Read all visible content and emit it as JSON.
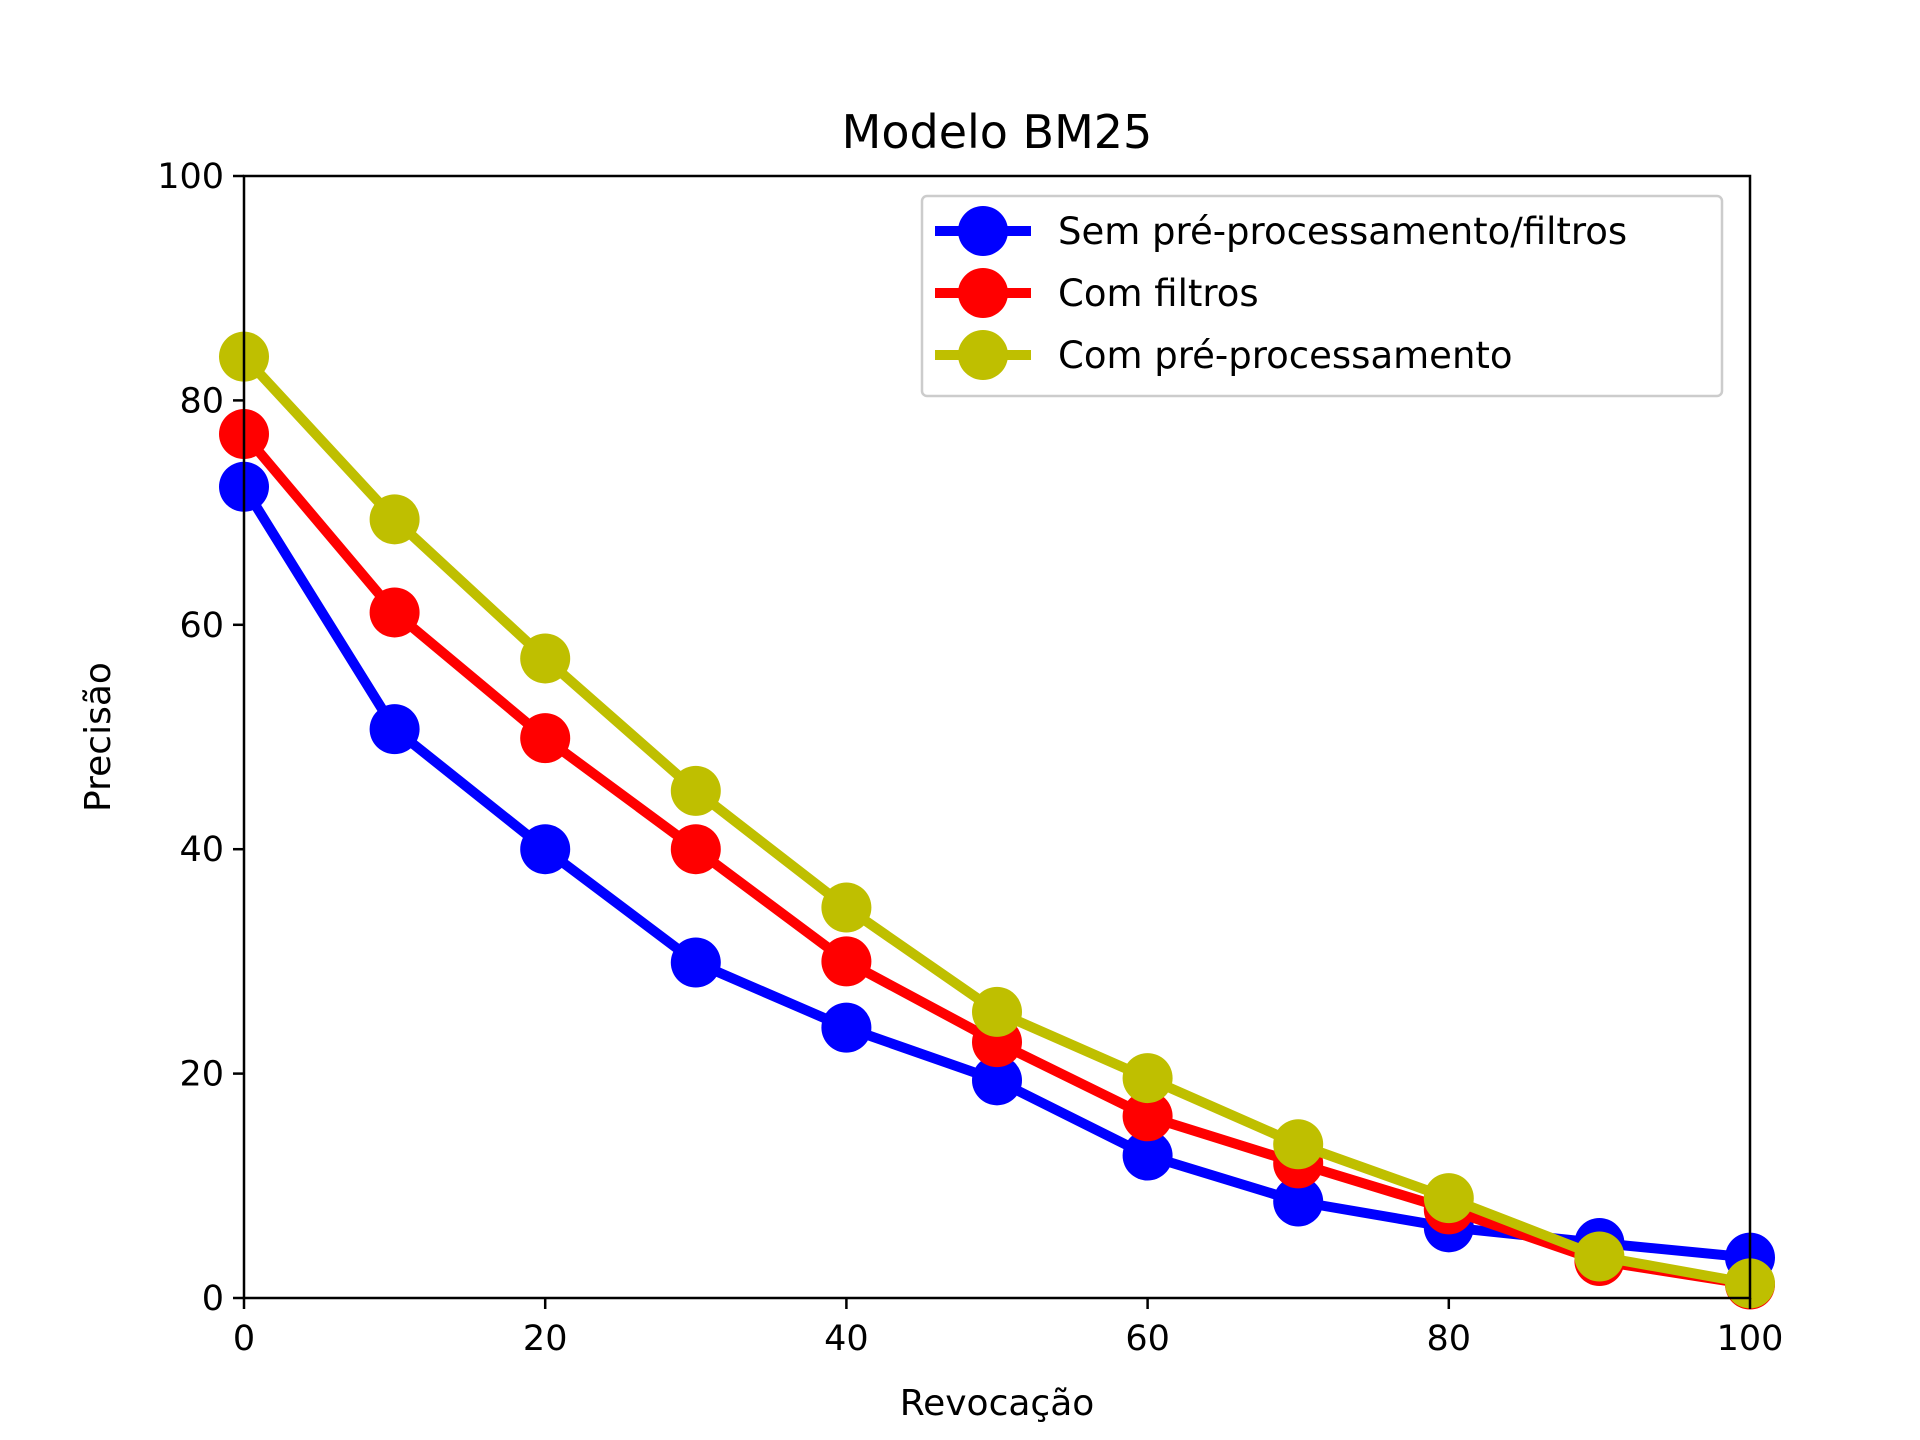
{
  "chart_data": {
    "type": "line",
    "title": "Modelo BM25",
    "xlabel": "Revocação",
    "ylabel": "Precisão",
    "xlim": [
      0,
      100
    ],
    "ylim": [
      0,
      100
    ],
    "xticks": [
      0,
      20,
      40,
      60,
      80,
      100
    ],
    "yticks": [
      0,
      20,
      40,
      60,
      80,
      100
    ],
    "grid": false,
    "legend_position": "top-right",
    "x": [
      0,
      10,
      20,
      30,
      40,
      50,
      60,
      70,
      80,
      90,
      100
    ],
    "series": [
      {
        "name": "Sem pré-processamento/filtros",
        "color": "#0000ff",
        "values": [
          72.3,
          50.7,
          40.0,
          29.9,
          24.1,
          19.4,
          12.7,
          8.6,
          6.3,
          4.9,
          3.6
        ]
      },
      {
        "name": "Com filtros",
        "color": "#ff0000",
        "values": [
          77.0,
          61.1,
          49.9,
          40.0,
          30.0,
          22.8,
          16.2,
          12.0,
          7.9,
          3.3,
          1.2
        ]
      },
      {
        "name": "Com pré-processamento",
        "color": "#bfbf00",
        "values": [
          83.9,
          69.4,
          57.0,
          45.2,
          34.8,
          25.5,
          19.6,
          13.7,
          8.9,
          3.7,
          1.3
        ]
      }
    ]
  }
}
